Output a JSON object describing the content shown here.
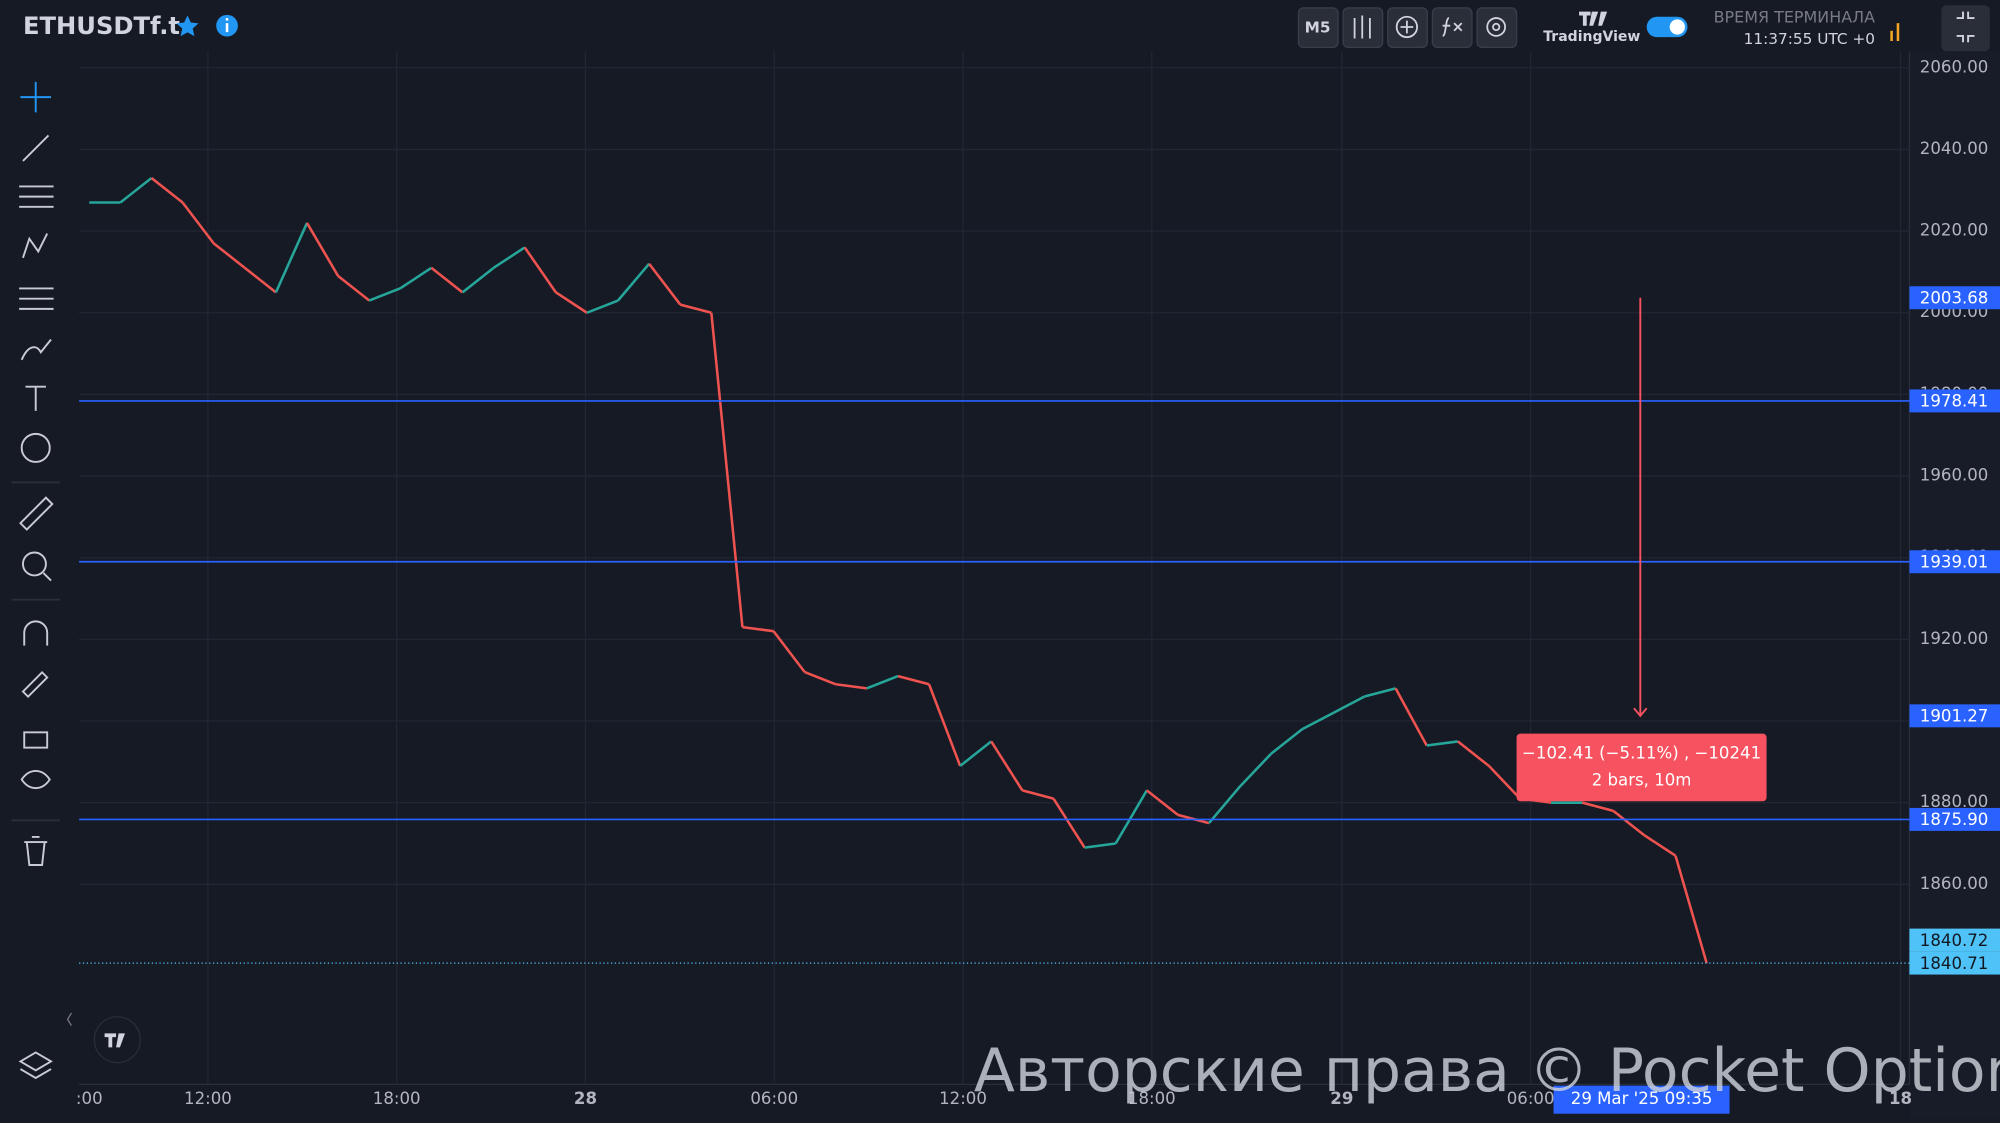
{
  "header": {
    "symbol": "ETHUSDTf.t",
    "timeframe": "M5",
    "brand": "TradingView",
    "terminal_time_label": "ВРЕМЯ ТЕРМИНАЛА",
    "terminal_time": "11:37:55 UTC +0"
  },
  "chart_data": {
    "type": "line",
    "values": [
      2027,
      2027,
      2033,
      2027,
      2017,
      2011,
      2005,
      2022,
      2009,
      2003,
      2006,
      2011,
      2005,
      2011,
      2016,
      2005,
      2000,
      2003,
      2012,
      2002,
      2000,
      1923,
      1922,
      1912,
      1909,
      1908,
      1911,
      1909,
      1889,
      1895,
      1883,
      1881,
      1869,
      1870,
      1883,
      1877,
      1875,
      1884,
      1892,
      1898,
      1902,
      1906,
      1908,
      1894,
      1895,
      1889,
      1881,
      1880,
      1880,
      1878,
      1872,
      1867,
      1840.71
    ],
    "up_color": "#26a69a",
    "down_color": "#ef5350",
    "ylim": [
      1811,
      2060
    ],
    "yticks": [
      {
        "value": 1860,
        "label": "1860.00"
      },
      {
        "value": 1880,
        "label": "1880.00"
      },
      {
        "value": 1900,
        "label": "1900.00"
      },
      {
        "value": 1920,
        "label": "1920.00"
      },
      {
        "value": 1940,
        "label": "1940.00"
      },
      {
        "value": 1960,
        "label": "1960.00"
      },
      {
        "value": 1980,
        "label": "1980.00"
      },
      {
        "value": 2000,
        "label": "2000.00"
      },
      {
        "value": 2020,
        "label": "2020.00"
      },
      {
        "value": 2040,
        "label": "2040.00"
      },
      {
        "value": 2060,
        "label": "2060.00"
      }
    ],
    "xtick_labels": [
      ":00",
      "12:00",
      "18:00",
      "28",
      "06:00",
      "12:00",
      "18:00",
      "29",
      "06:00",
      "18"
    ],
    "grid": true,
    "price_lines": [
      1978.41,
      1939.01,
      {
        "value": 1875.9,
        "label": "1875.90"
      }
    ],
    "line_color": "#2962ff",
    "measure": {
      "from": 2003.68,
      "to": 1901.27,
      "text": "−102.41 (−5.11%) , −10241",
      "subtext": "2 bars, 10m",
      "color": "#f7525f"
    },
    "bid": 1840.72,
    "last": 1840.71,
    "crosshair_time": "29 Mar '25  09:35"
  },
  "watermark": "Авторские права © Pocket Option"
}
